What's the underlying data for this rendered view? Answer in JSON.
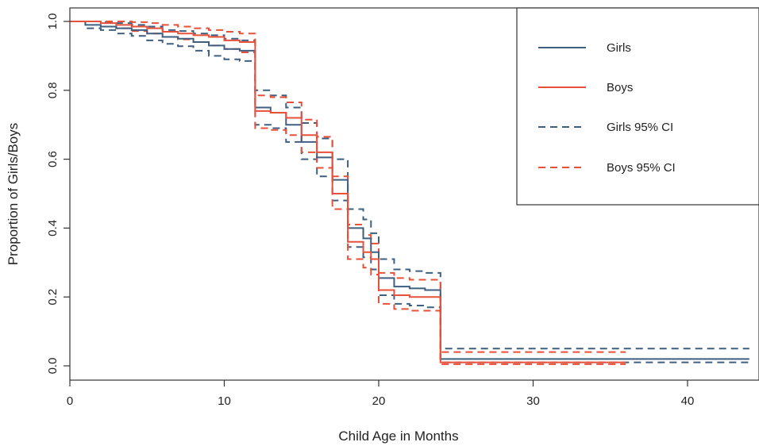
{
  "chart_data": {
    "type": "line",
    "xlabel": "Child Age in Months",
    "ylabel": "Proportion of Girls/Boys",
    "xlim": [
      0,
      44
    ],
    "ylim": [
      0,
      1.0
    ],
    "x_ticks": [
      "0",
      "10",
      "20",
      "30",
      "40"
    ],
    "y_ticks": [
      "0.0",
      "0.2",
      "0.4",
      "0.6",
      "0.8",
      "1.0"
    ],
    "grid": false,
    "legend_position": "top-right",
    "legend": [
      "Girls",
      "Boys",
      "Girls 95% CI",
      "Boys 95% CI"
    ],
    "colors": {
      "girls": "#3f5f80",
      "boys": "#e8503a"
    },
    "series": [
      {
        "name": "Girls",
        "style": "solid",
        "steps": [
          [
            0,
            1.0
          ],
          [
            1,
            0.99
          ],
          [
            2,
            0.985
          ],
          [
            3,
            0.98
          ],
          [
            4,
            0.975
          ],
          [
            5,
            0.965
          ],
          [
            6,
            0.955
          ],
          [
            7,
            0.95
          ],
          [
            8,
            0.94
          ],
          [
            9,
            0.93
          ],
          [
            10,
            0.92
          ],
          [
            11,
            0.915
          ],
          [
            12,
            0.75
          ],
          [
            13,
            0.735
          ],
          [
            14,
            0.7
          ],
          [
            15,
            0.65
          ],
          [
            16,
            0.605
          ],
          [
            17,
            0.54
          ],
          [
            18,
            0.4
          ],
          [
            19,
            0.37
          ],
          [
            19.5,
            0.33
          ],
          [
            20,
            0.255
          ],
          [
            21,
            0.23
          ],
          [
            22,
            0.225
          ],
          [
            23,
            0.22
          ],
          [
            24,
            0.02
          ],
          [
            44,
            0.02
          ]
        ]
      },
      {
        "name": "Boys",
        "style": "solid",
        "steps": [
          [
            0,
            1.0
          ],
          [
            2,
            0.995
          ],
          [
            3,
            0.99
          ],
          [
            4,
            0.985
          ],
          [
            5,
            0.98
          ],
          [
            6,
            0.97
          ],
          [
            7,
            0.965
          ],
          [
            8,
            0.96
          ],
          [
            9,
            0.955
          ],
          [
            10,
            0.945
          ],
          [
            11,
            0.94
          ],
          [
            12,
            0.74
          ],
          [
            13,
            0.735
          ],
          [
            14,
            0.72
          ],
          [
            15,
            0.67
          ],
          [
            16,
            0.62
          ],
          [
            17,
            0.5
          ],
          [
            18,
            0.36
          ],
          [
            19,
            0.33
          ],
          [
            19.5,
            0.31
          ],
          [
            20,
            0.22
          ],
          [
            21,
            0.205
          ],
          [
            22,
            0.2
          ],
          [
            24,
            0.01
          ],
          [
            36,
            0.01
          ]
        ]
      },
      {
        "name": "Girls 95% CI",
        "style": "dashed",
        "steps": [
          [
            0,
            1.0
          ],
          [
            1,
            1.0
          ],
          [
            2,
            0.998
          ],
          [
            3,
            0.995
          ],
          [
            4,
            0.99
          ],
          [
            5,
            0.985
          ],
          [
            6,
            0.975
          ],
          [
            7,
            0.972
          ],
          [
            8,
            0.965
          ],
          [
            9,
            0.96
          ],
          [
            10,
            0.95
          ],
          [
            11,
            0.945
          ],
          [
            12,
            0.8
          ],
          [
            13,
            0.785
          ],
          [
            14,
            0.75
          ],
          [
            15,
            0.705
          ],
          [
            16,
            0.66
          ],
          [
            17,
            0.6
          ],
          [
            18,
            0.455
          ],
          [
            19,
            0.425
          ],
          [
            19.5,
            0.385
          ],
          [
            20,
            0.31
          ],
          [
            21,
            0.28
          ],
          [
            22,
            0.275
          ],
          [
            23,
            0.27
          ],
          [
            24,
            0.05
          ],
          [
            44,
            0.05
          ]
        ]
      },
      {
        "name": "Girls 95% CI",
        "style": "dashed",
        "steps": [
          [
            0,
            1.0
          ],
          [
            1,
            0.98
          ],
          [
            2,
            0.975
          ],
          [
            3,
            0.965
          ],
          [
            4,
            0.958
          ],
          [
            5,
            0.945
          ],
          [
            6,
            0.935
          ],
          [
            7,
            0.928
          ],
          [
            8,
            0.915
          ],
          [
            9,
            0.9
          ],
          [
            10,
            0.89
          ],
          [
            11,
            0.885
          ],
          [
            12,
            0.7
          ],
          [
            13,
            0.69
          ],
          [
            14,
            0.65
          ],
          [
            15,
            0.6
          ],
          [
            16,
            0.55
          ],
          [
            17,
            0.48
          ],
          [
            18,
            0.345
          ],
          [
            19,
            0.315
          ],
          [
            19.5,
            0.28
          ],
          [
            20,
            0.205
          ],
          [
            21,
            0.18
          ],
          [
            22,
            0.175
          ],
          [
            23,
            0.17
          ],
          [
            24,
            0.01
          ],
          [
            44,
            0.01
          ]
        ]
      },
      {
        "name": "Boys 95% CI",
        "style": "dashed",
        "steps": [
          [
            0,
            1.0
          ],
          [
            2,
            1.0
          ],
          [
            4,
            0.998
          ],
          [
            5,
            0.995
          ],
          [
            6,
            0.99
          ],
          [
            7,
            0.985
          ],
          [
            8,
            0.98
          ],
          [
            9,
            0.975
          ],
          [
            10,
            0.97
          ],
          [
            11,
            0.965
          ],
          [
            12,
            0.785
          ],
          [
            13,
            0.78
          ],
          [
            14,
            0.765
          ],
          [
            15,
            0.715
          ],
          [
            16,
            0.665
          ],
          [
            17,
            0.55
          ],
          [
            18,
            0.41
          ],
          [
            19,
            0.38
          ],
          [
            19.5,
            0.355
          ],
          [
            20,
            0.27
          ],
          [
            21,
            0.255
          ],
          [
            22,
            0.25
          ],
          [
            24,
            0.04
          ],
          [
            36,
            0.04
          ]
        ]
      },
      {
        "name": "Boys 95% CI",
        "style": "dashed",
        "steps": [
          [
            0,
            1.0
          ],
          [
            2,
            0.985
          ],
          [
            3,
            0.98
          ],
          [
            4,
            0.972
          ],
          [
            5,
            0.965
          ],
          [
            6,
            0.955
          ],
          [
            7,
            0.948
          ],
          [
            8,
            0.94
          ],
          [
            9,
            0.93
          ],
          [
            10,
            0.92
          ],
          [
            11,
            0.91
          ],
          [
            12,
            0.69
          ],
          [
            13,
            0.685
          ],
          [
            14,
            0.67
          ],
          [
            15,
            0.62
          ],
          [
            16,
            0.575
          ],
          [
            17,
            0.455
          ],
          [
            18,
            0.31
          ],
          [
            19,
            0.285
          ],
          [
            19.5,
            0.265
          ],
          [
            20,
            0.18
          ],
          [
            21,
            0.165
          ],
          [
            22,
            0.16
          ],
          [
            24,
            0.005
          ],
          [
            36,
            0.005
          ]
        ]
      }
    ]
  }
}
